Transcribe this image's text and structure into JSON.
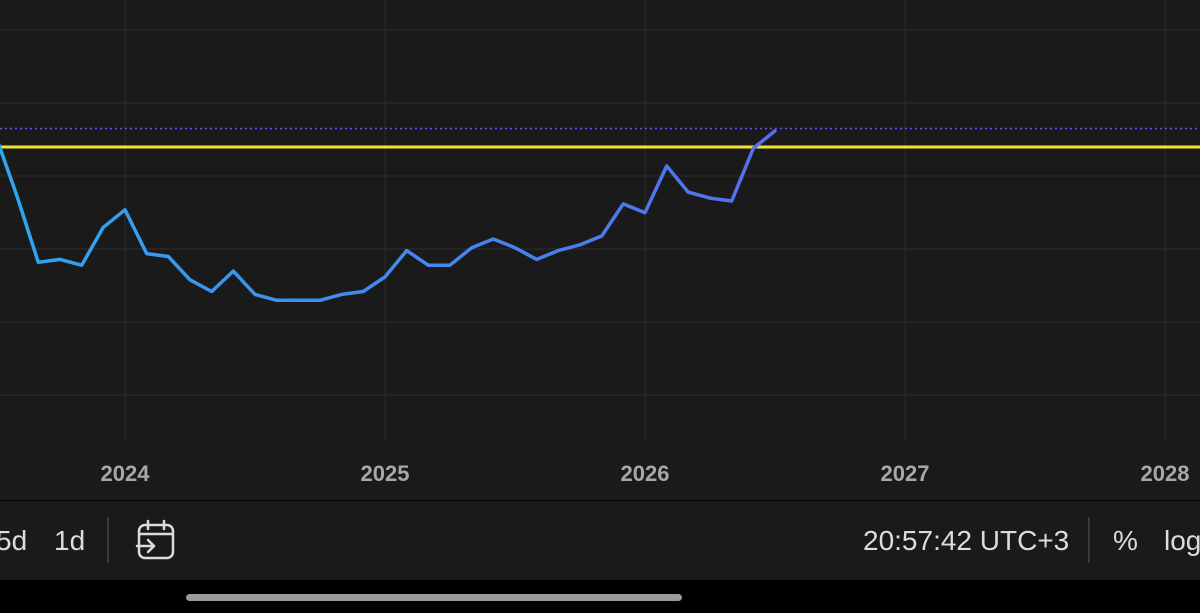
{
  "chart_data": {
    "type": "line",
    "x_tick_labels": [
      "2024",
      "2025",
      "2026",
      "2027",
      "2028"
    ],
    "reference_line_color": "#f3e336",
    "line_gradient": [
      "#2ea6ee",
      "#6a4ff0"
    ],
    "grid": true,
    "series": [
      {
        "values": [
          {
            "date": "2023-06",
            "rel": 0.56
          },
          {
            "date": "2023-07",
            "rel": 0.98
          },
          {
            "date": "2023-08",
            "rel": 0.77
          },
          {
            "date": "2023-09",
            "rel": 0.54
          },
          {
            "date": "2023-10",
            "rel": 0.55
          },
          {
            "date": "2023-11",
            "rel": 0.53
          },
          {
            "date": "2023-12",
            "rel": 0.66
          },
          {
            "date": "2024-01",
            "rel": 0.72
          },
          {
            "date": "2024-02",
            "rel": 0.57
          },
          {
            "date": "2024-03",
            "rel": 0.56
          },
          {
            "date": "2024-04",
            "rel": 0.48
          },
          {
            "date": "2024-05",
            "rel": 0.44
          },
          {
            "date": "2024-06",
            "rel": 0.51
          },
          {
            "date": "2024-07",
            "rel": 0.43
          },
          {
            "date": "2024-08",
            "rel": 0.41
          },
          {
            "date": "2024-09",
            "rel": 0.41
          },
          {
            "date": "2024-10",
            "rel": 0.41
          },
          {
            "date": "2024-11",
            "rel": 0.43
          },
          {
            "date": "2024-12",
            "rel": 0.44
          },
          {
            "date": "2025-01",
            "rel": 0.49
          },
          {
            "date": "2025-02",
            "rel": 0.58
          },
          {
            "date": "2025-03",
            "rel": 0.53
          },
          {
            "date": "2025-04",
            "rel": 0.53
          },
          {
            "date": "2025-05",
            "rel": 0.59
          },
          {
            "date": "2025-06",
            "rel": 0.62
          },
          {
            "date": "2025-07",
            "rel": 0.59
          },
          {
            "date": "2025-08",
            "rel": 0.55
          },
          {
            "date": "2025-09",
            "rel": 0.58
          },
          {
            "date": "2025-10",
            "rel": 0.6
          },
          {
            "date": "2025-11",
            "rel": 0.63
          },
          {
            "date": "2025-12",
            "rel": 0.74
          },
          {
            "date": "2026-01",
            "rel": 0.71
          },
          {
            "date": "2026-02",
            "rel": 0.87
          },
          {
            "date": "2026-03",
            "rel": 0.78
          },
          {
            "date": "2026-04",
            "rel": 0.76
          },
          {
            "date": "2026-05",
            "rel": 0.75
          },
          {
            "date": "2026-06",
            "rel": 0.93
          },
          {
            "date": "2026-07",
            "rel": 0.99
          }
        ]
      }
    ]
  },
  "toolbar": {
    "intervals": [
      "5d",
      "1d"
    ],
    "clock": "20:57:42 UTC+3",
    "percent_label": "%",
    "log_label": "log"
  }
}
